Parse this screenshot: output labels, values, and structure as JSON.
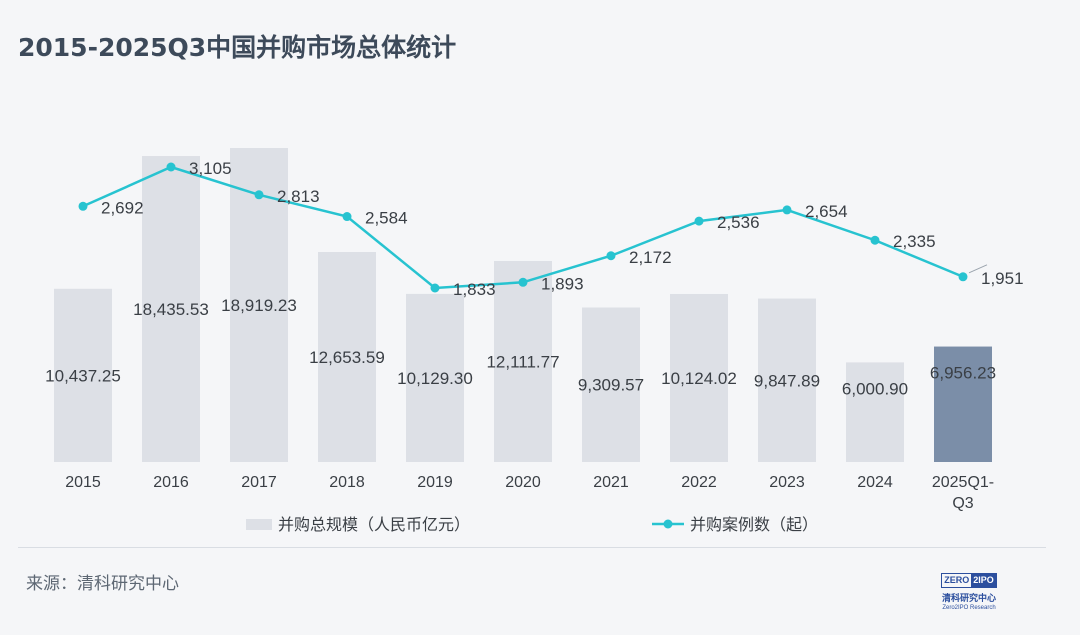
{
  "title": "2015-2025Q3中国并购市场总体统计",
  "source": "来源：清科研究中心",
  "logo": {
    "part1": "ZERO",
    "part2": "2IPO",
    "cn": "清科研究中心",
    "en": "Zero2IPO Research"
  },
  "colors": {
    "bar": "#dde0e6",
    "bar_highlight": "#7b8ea8",
    "line": "#27c3d0",
    "text": "#3a3f45",
    "title": "#3d4a5a"
  },
  "chart_data": {
    "type": "bar+line",
    "categories": [
      "2015",
      "2016",
      "2017",
      "2018",
      "2019",
      "2020",
      "2021",
      "2022",
      "2023",
      "2024",
      "2025Q1-Q3"
    ],
    "category_lines": [
      [
        "2015"
      ],
      [
        "2016"
      ],
      [
        "2017"
      ],
      [
        "2018"
      ],
      [
        "2019"
      ],
      [
        "2020"
      ],
      [
        "2021"
      ],
      [
        "2022"
      ],
      [
        "2023"
      ],
      [
        "2024"
      ],
      [
        "2025Q1-",
        "Q3"
      ]
    ],
    "series": [
      {
        "name": "并购总规模（人民币亿元）",
        "type": "bar",
        "values": [
          10437.25,
          18435.53,
          18919.23,
          12653.59,
          10129.3,
          12111.77,
          9309.57,
          10124.02,
          9847.89,
          6000.9,
          6956.23
        ],
        "labels": [
          "10,437.25",
          "18,435.53",
          "18,919.23",
          "12,653.59",
          "10,129.30",
          "12,111.77",
          "9,309.57",
          "10,124.02",
          "9,847.89",
          "6,000.90",
          "6,956.23"
        ],
        "highlight_index": 10
      },
      {
        "name": "并购案例数（起）",
        "type": "line",
        "values": [
          2692,
          3105,
          2813,
          2584,
          1833,
          1893,
          2172,
          2536,
          2654,
          2335,
          1951
        ],
        "labels": [
          "2,692",
          "3,105",
          "2,813",
          "2,584",
          "1,833",
          "1,893",
          "2,172",
          "2,536",
          "2,654",
          "2,335",
          "1,951"
        ]
      }
    ],
    "legend": [
      "并购总规模（人民币亿元）",
      "并购案例数（起）"
    ],
    "legend_position": "bottom"
  }
}
